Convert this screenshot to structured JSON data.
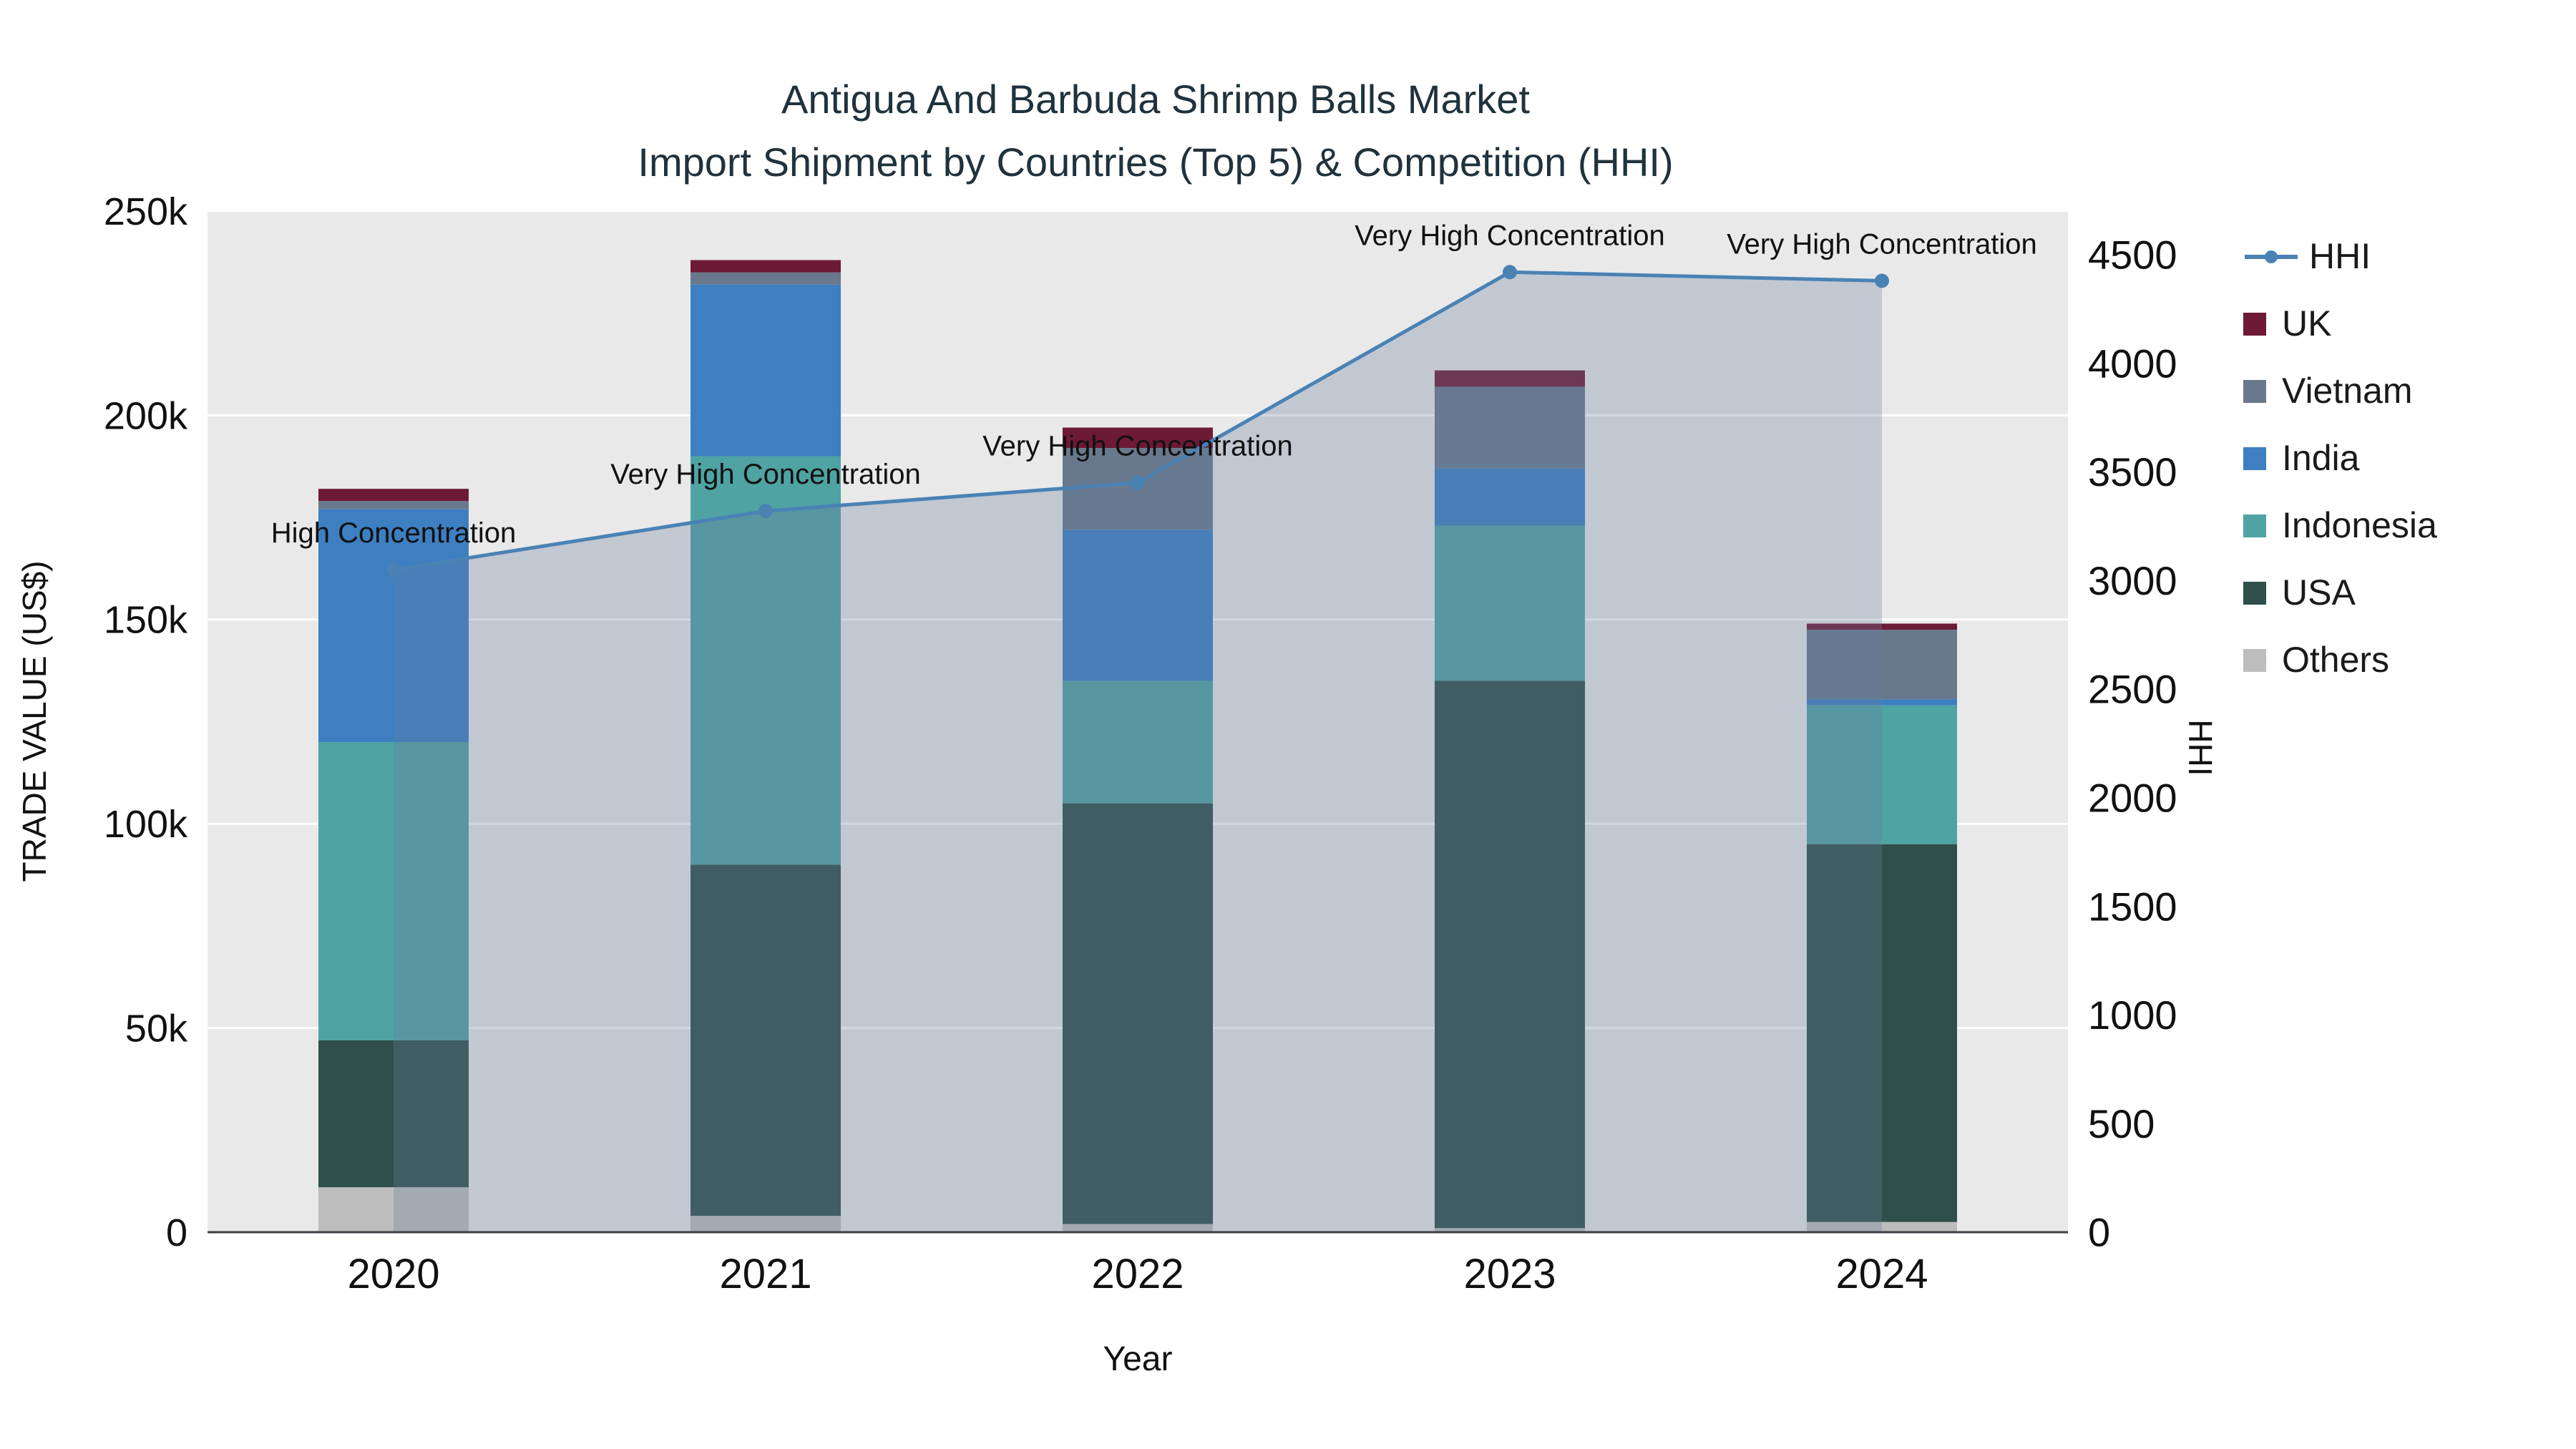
{
  "title": {
    "line1": "Antigua And Barbuda Shrimp Balls Market",
    "line2": "Import Shipment by Countries (Top 5) & Competition (HHI)"
  },
  "axes": {
    "x_title": "Year",
    "y_left_title": "TRADE VALUE (US$)",
    "y_right_title": "HHI"
  },
  "chart_data": {
    "type": "bar",
    "variant": "stacked bars (trade value by country) + HHI line with area fill, dual y-axis",
    "categories": [
      "2020",
      "2021",
      "2022",
      "2023",
      "2024"
    ],
    "bar_series": [
      {
        "name": "Others",
        "color": "#bdbdbd",
        "values": [
          11000,
          4000,
          2000,
          1000,
          2500
        ]
      },
      {
        "name": "USA",
        "color": "#2e4f4a",
        "values": [
          36000,
          86000,
          103000,
          134000,
          92500
        ]
      },
      {
        "name": "Indonesia",
        "color": "#4fa3a3",
        "values": [
          73000,
          100000,
          30000,
          38000,
          34000
        ]
      },
      {
        "name": "India",
        "color": "#3d7fc1",
        "values": [
          57000,
          42000,
          37000,
          14000,
          1500
        ]
      },
      {
        "name": "Vietnam",
        "color": "#68798d",
        "values": [
          2000,
          3000,
          20000,
          20000,
          17000
        ]
      },
      {
        "name": "UK",
        "color": "#6d1a36",
        "values": [
          3000,
          3000,
          5000,
          4000,
          1500
        ]
      }
    ],
    "line_series": {
      "name": "HHI",
      "color": "#4a82b4",
      "values": [
        3050,
        3320,
        3450,
        4420,
        4380
      ]
    },
    "annotations": [
      "High Concentration",
      "Very High Concentration",
      "Very High Concentration",
      "Very High Concentration",
      "Very High Concentration"
    ],
    "y_left": {
      "range": [
        0,
        250000
      ],
      "ticks": [
        {
          "v": 0,
          "label": "0"
        },
        {
          "v": 50000,
          "label": "50k"
        },
        {
          "v": 100000,
          "label": "100k"
        },
        {
          "v": 150000,
          "label": "150k"
        },
        {
          "v": 200000,
          "label": "200k"
        },
        {
          "v": 250000,
          "label": "250k"
        }
      ]
    },
    "y_right": {
      "range": [
        0,
        4500
      ],
      "ticks": [
        {
          "v": 0,
          "label": "0"
        },
        {
          "v": 500,
          "label": "500"
        },
        {
          "v": 1000,
          "label": "1000"
        },
        {
          "v": 1500,
          "label": "1500"
        },
        {
          "v": 2000,
          "label": "2000"
        },
        {
          "v": 2500,
          "label": "2500"
        },
        {
          "v": 3000,
          "label": "3000"
        },
        {
          "v": 3500,
          "label": "3500"
        },
        {
          "v": 4000,
          "label": "4000"
        },
        {
          "v": 4500,
          "label": "4500"
        }
      ]
    },
    "legend": [
      {
        "label": "HHI",
        "type": "line",
        "color": "#4a82b4"
      },
      {
        "label": "UK",
        "type": "square",
        "color": "#6d1a36"
      },
      {
        "label": "Vietnam",
        "type": "square",
        "color": "#68798d"
      },
      {
        "label": "India",
        "type": "square",
        "color": "#3d7fc1"
      },
      {
        "label": "Indonesia",
        "type": "square",
        "color": "#4fa3a3"
      },
      {
        "label": "USA",
        "type": "square",
        "color": "#2e4f4a"
      },
      {
        "label": "Others",
        "type": "square",
        "color": "#bdbdbd"
      }
    ],
    "colors": {
      "plot_bg": "#e9e9e9",
      "grid": "#ffffff",
      "area_fill": "rgba(105,125,160,0.30)",
      "axis_line": "#3a3f44",
      "tick_text": "#111111"
    }
  }
}
